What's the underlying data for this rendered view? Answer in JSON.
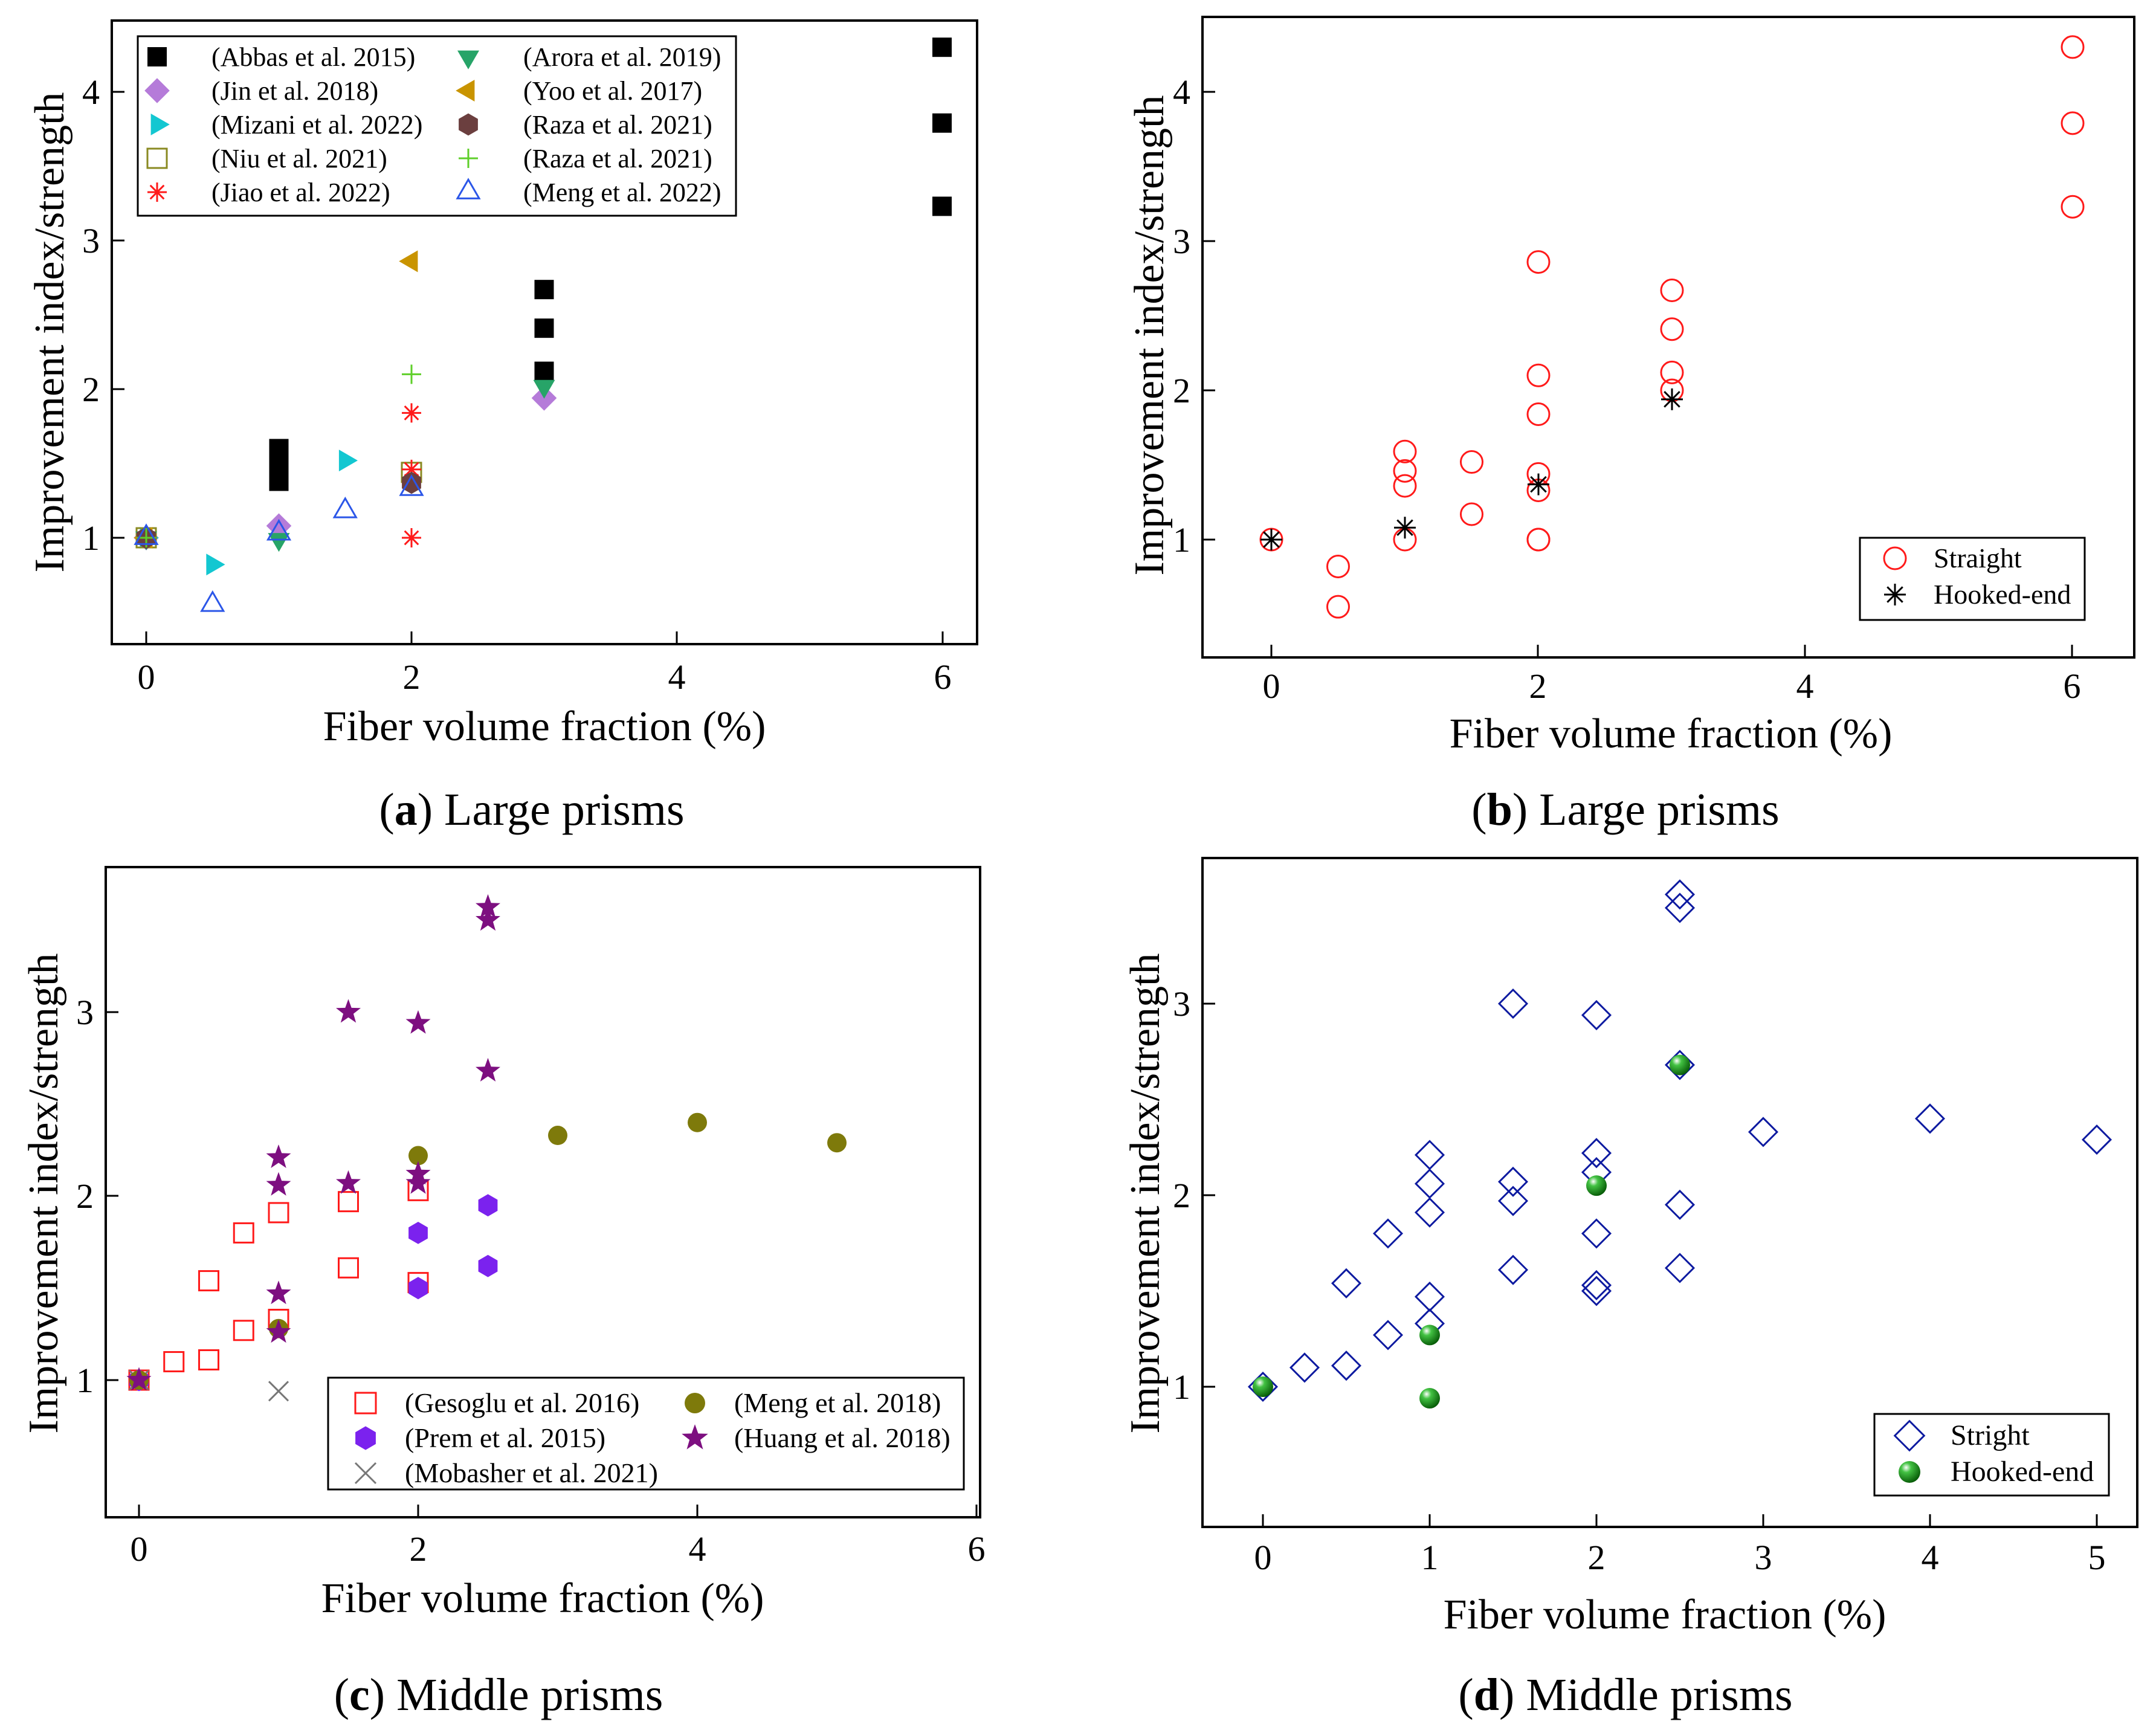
{
  "figure": {
    "panels": [
      {
        "id": "a",
        "caption_letter": "a",
        "caption_text": " Large prisms"
      },
      {
        "id": "b",
        "caption_letter": "b",
        "caption_text": " Large prisms"
      },
      {
        "id": "c",
        "caption_letter": "c",
        "caption_text": " Middle prisms"
      },
      {
        "id": "d",
        "caption_letter": "d",
        "caption_text": " Middle prisms"
      }
    ]
  },
  "colors": {
    "black": "#000000",
    "purple_light": "#b57bd9",
    "cyan": "#13c7d1",
    "olive": "#8a8a22",
    "red": "#ff1a1a",
    "green_tri": "#27a468",
    "gold": "#c99400",
    "brown": "#6b3f3f",
    "green_plus": "#5fcf2a",
    "blue": "#2b56e8",
    "navy": "#0d1aa0",
    "violet": "#7b22ee",
    "dark_purple": "#7d0f80",
    "gray": "#777777",
    "olive_dark": "#7e7a0b",
    "green_ball": "#0f8a0f"
  },
  "chart_data": [
    {
      "id": "a",
      "type": "scatter",
      "title": "",
      "xlabel": "Fiber volume fraction (%)",
      "ylabel": "Improvement index/strength",
      "xlim": [
        -0.4,
        6.3
      ],
      "ylim": [
        0.3,
        4.5
      ],
      "xticks": [
        0,
        2,
        4,
        6
      ],
      "yticks": [
        1,
        2,
        3,
        4
      ],
      "legend_position": "top-left",
      "series": [
        {
          "name": "(Abbas et al. 2015)",
          "marker": "square-filled",
          "color": "#000000",
          "x": [
            1,
            1,
            1,
            1,
            1,
            1,
            3,
            3,
            3,
            6,
            6,
            6
          ],
          "y": [
            1.38,
            1.44,
            1.49,
            1.55,
            1.6,
            1.42,
            2.12,
            2.41,
            2.67,
            3.23,
            3.79,
            4.3
          ]
        },
        {
          "name": "(Jin et al. 2018)",
          "marker": "diamond-filled",
          "color": "#b57bd9",
          "x": [
            0,
            1,
            3
          ],
          "y": [
            1.0,
            1.08,
            1.94
          ]
        },
        {
          "name": "(Mizani et al. 2022)",
          "marker": "triangle-right-filled",
          "color": "#13c7d1",
          "x": [
            0,
            0.5,
            1.5
          ],
          "y": [
            1.0,
            0.82,
            1.52
          ]
        },
        {
          "name": "(Niu et al. 2021)",
          "marker": "square-open",
          "color": "#8a8a22",
          "x": [
            0,
            2
          ],
          "y": [
            1.0,
            1.44
          ]
        },
        {
          "name": "(Jiao et al. 2022)",
          "marker": "asterisk",
          "color": "#ff1a1a",
          "x": [
            0,
            2,
            2,
            2,
            2
          ],
          "y": [
            1.0,
            1.0,
            1.38,
            1.46,
            1.84
          ]
        },
        {
          "name": "(Arora et al. 2019)",
          "marker": "triangle-down-filled",
          "color": "#27a468",
          "x": [
            0,
            1,
            3
          ],
          "y": [
            1.0,
            0.99,
            2.02
          ]
        },
        {
          "name": "(Yoo et al. 2017)",
          "marker": "triangle-left-filled",
          "color": "#c99400",
          "x": [
            0,
            2
          ],
          "y": [
            1.0,
            2.86
          ]
        },
        {
          "name": "(Raza et al. 2021)",
          "marker": "hexagon-filled",
          "color": "#6b3f3f",
          "x": [
            0,
            2
          ],
          "y": [
            1.0,
            1.37
          ]
        },
        {
          "name": "(Raza et al. 2021)",
          "marker": "plus",
          "color": "#5fcf2a",
          "x": [
            0,
            2
          ],
          "y": [
            1.0,
            2.1
          ]
        },
        {
          "name": "(Meng et al. 2022)",
          "marker": "triangle-up-open",
          "color": "#2b56e8",
          "x": [
            0,
            0.5,
            1,
            1.5,
            2
          ],
          "y": [
            1.0,
            0.55,
            1.03,
            1.18,
            1.33
          ]
        }
      ]
    },
    {
      "id": "b",
      "type": "scatter",
      "title": "",
      "xlabel": "Fiber volume fraction (%)",
      "ylabel": "Improvement index/strength",
      "xlim": [
        -0.4,
        6.3
      ],
      "ylim": [
        0.3,
        4.5
      ],
      "xticks": [
        0,
        2,
        4,
        6
      ],
      "yticks": [
        1,
        2,
        3,
        4
      ],
      "legend_position": "bottom-right",
      "series": [
        {
          "name": "Straight",
          "marker": "circle-open",
          "color": "#ff1a1a",
          "x": [
            0,
            0.5,
            0.5,
            1,
            1,
            1,
            1,
            1.5,
            1.5,
            2,
            2,
            2,
            2,
            2,
            2,
            2,
            3,
            3,
            3,
            3,
            6,
            6,
            6
          ],
          "y": [
            1.0,
            0.82,
            0.55,
            1.0,
            1.36,
            1.46,
            1.59,
            1.52,
            1.17,
            1.0,
            1.33,
            1.44,
            1.84,
            2.1,
            2.86,
            1.0,
            2.0,
            2.12,
            2.41,
            2.67,
            3.23,
            3.79,
            4.3
          ]
        },
        {
          "name": "Hooked-end",
          "marker": "asterisk",
          "color": "#000000",
          "x": [
            0,
            1,
            2,
            3
          ],
          "y": [
            1.0,
            1.08,
            1.37,
            1.94
          ]
        }
      ]
    },
    {
      "id": "c",
      "type": "scatter",
      "title": "",
      "xlabel": "Fiber volume fraction (%)",
      "ylabel": "Improvement index/strength",
      "xlim": [
        -0.25,
        6.0
      ],
      "ylim": [
        0.25,
        3.8
      ],
      "xticks": [
        0,
        2,
        4,
        6
      ],
      "yticks": [
        1,
        2,
        3
      ],
      "legend_position": "bottom-right",
      "series": [
        {
          "name": "(Gesoglu et al. 2016)",
          "marker": "square-open",
          "color": "#ff1a1a",
          "x": [
            0,
            0.25,
            0.5,
            0.5,
            0.75,
            0.75,
            1,
            1,
            1.5,
            1.5,
            2,
            2
          ],
          "y": [
            1.0,
            1.1,
            1.11,
            1.54,
            1.27,
            1.8,
            1.33,
            1.91,
            1.61,
            1.97,
            1.53,
            2.03
          ]
        },
        {
          "name": "(Prem et al. 2015)",
          "marker": "hexagon-filled",
          "color": "#7b22ee",
          "x": [
            0,
            2,
            2,
            2.5,
            2.5
          ],
          "y": [
            1.0,
            1.5,
            1.8,
            1.62,
            1.95
          ]
        },
        {
          "name": "(Mobasher et al. 2021)",
          "marker": "x",
          "color": "#777777",
          "x": [
            0,
            1
          ],
          "y": [
            1.0,
            0.94
          ]
        },
        {
          "name": "(Meng et al. 2018)",
          "marker": "circle-filled",
          "color": "#7e7a0b",
          "x": [
            0,
            1,
            2,
            3,
            4,
            5
          ],
          "y": [
            1.0,
            1.28,
            2.22,
            2.33,
            2.4,
            2.29
          ]
        },
        {
          "name": "(Huang et al. 2018)",
          "marker": "star-filled",
          "color": "#7d0f80",
          "x": [
            0,
            1,
            1,
            1,
            1,
            1.5,
            1.5,
            2,
            2,
            2,
            2.5,
            2.5,
            2.5
          ],
          "y": [
            1.0,
            1.26,
            1.47,
            2.06,
            2.21,
            2.07,
            3.0,
            2.07,
            2.12,
            2.94,
            2.68,
            3.5,
            3.57
          ]
        }
      ]
    },
    {
      "id": "d",
      "type": "scatter",
      "title": "",
      "xlabel": "Fiber volume fraction (%)",
      "ylabel": "Improvement index/strength",
      "xlim": [
        -0.3,
        5.3
      ],
      "ylim": [
        0.25,
        3.8
      ],
      "xticks": [
        0,
        1,
        2,
        3,
        4,
        5
      ],
      "yticks": [
        1,
        2,
        3
      ],
      "legend_position": "bottom-right",
      "series": [
        {
          "name": "Stright",
          "marker": "diamond-open",
          "color": "#0d1aa0",
          "x": [
            0,
            0.25,
            0.5,
            0.5,
            0.75,
            0.75,
            1,
            1,
            1,
            1,
            1,
            1.5,
            1.5,
            1.5,
            1.5,
            2,
            2,
            2,
            2,
            2,
            2,
            2.5,
            2.5,
            2.5,
            2.5,
            2.5,
            3,
            4,
            5
          ],
          "y": [
            1.0,
            1.1,
            1.11,
            1.54,
            1.27,
            1.8,
            1.33,
            1.47,
            1.91,
            2.06,
            2.21,
            1.61,
            1.97,
            2.07,
            3.0,
            1.5,
            1.53,
            1.8,
            2.12,
            2.22,
            2.94,
            1.62,
            1.95,
            2.68,
            3.5,
            3.57,
            2.33,
            2.4,
            2.29
          ]
        },
        {
          "name": "Hooked-end",
          "marker": "sphere",
          "color": "#0f8a0f",
          "x": [
            0,
            1,
            1,
            2,
            2.5
          ],
          "y": [
            1.0,
            0.94,
            1.27,
            2.05,
            2.68
          ]
        }
      ]
    }
  ]
}
